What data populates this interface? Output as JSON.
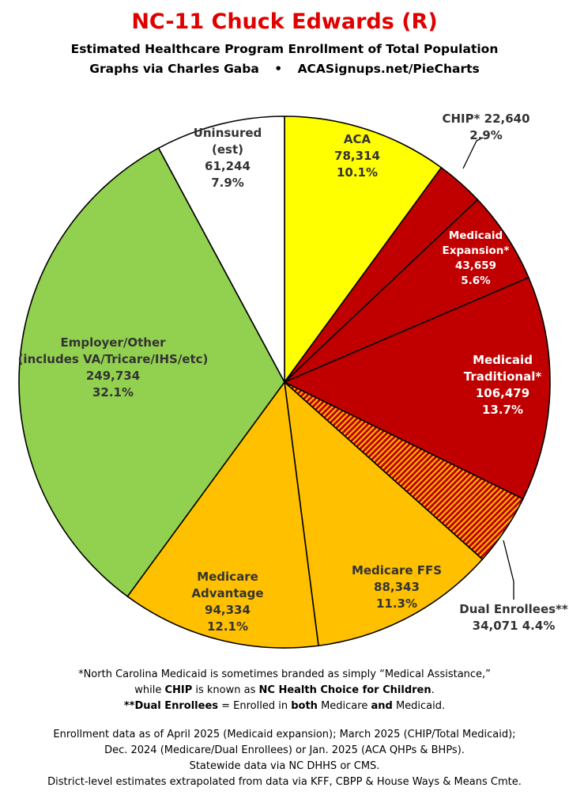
{
  "title": "NC-11 Chuck Edwards (R)",
  "subtitle": "Estimated Healthcare Program Enrollment of Total Population",
  "credit_left": "Graphs via Charles Gaba",
  "credit_bullet": "•",
  "credit_right": "ACASignups.net/PieCharts",
  "colors": {
    "title": "#e00000",
    "aca": "#ffff00",
    "medicaid": "#c00000",
    "medicare": "#ffc000",
    "employer": "#92d050",
    "uninsured": "#ffffff",
    "dual_stripe": "#ffc000"
  },
  "chart_data": {
    "type": "pie",
    "start": "12 o'clock",
    "direction": "clockwise",
    "slices": [
      {
        "key": "aca",
        "label_lines": [
          "ACA"
        ],
        "value": 78314,
        "value_text": "78,314",
        "percent": 10.1,
        "percent_text": "10.1%",
        "color": "#ffff00"
      },
      {
        "key": "chip",
        "label_lines": [
          "CHIP* 22,640"
        ],
        "value": 22640,
        "value_text": "",
        "percent": 2.9,
        "percent_text": "2.9%",
        "color": "#c00000"
      },
      {
        "key": "medicaid-expansion",
        "label_lines": [
          "Medicaid",
          "Expansion*"
        ],
        "value": 43659,
        "value_text": "43,659",
        "percent": 5.6,
        "percent_text": "5.6%",
        "color": "#c00000"
      },
      {
        "key": "medicaid-traditional",
        "label_lines": [
          "Medicaid",
          "Traditional*"
        ],
        "value": 106479,
        "value_text": "106,479",
        "percent": 13.7,
        "percent_text": "13.7%",
        "color": "#c00000"
      },
      {
        "key": "dual-enrollees",
        "label_lines": [
          "Dual Enrollees**"
        ],
        "value": 34071,
        "value_text": "34,071 4.4%",
        "percent": 4.4,
        "percent_text": "",
        "color": "#c00000",
        "pattern": "stripes"
      },
      {
        "key": "medicare-ffs",
        "label_lines": [
          "Medicare FFS"
        ],
        "value": 88343,
        "value_text": "88,343",
        "percent": 11.3,
        "percent_text": "11.3%",
        "color": "#ffc000"
      },
      {
        "key": "medicare-advantage",
        "label_lines": [
          "Medicare",
          "Advantage"
        ],
        "value": 94334,
        "value_text": "94,334",
        "percent": 12.1,
        "percent_text": "12.1%",
        "color": "#ffc000"
      },
      {
        "key": "employer-other",
        "label_lines": [
          "Employer/Other",
          "(includes VA/Tricare/IHS/etc)"
        ],
        "value": 249734,
        "value_text": "249,734",
        "percent": 32.1,
        "percent_text": "32.1%",
        "color": "#92d050"
      },
      {
        "key": "uninsured",
        "label_lines": [
          "Uninsured",
          "(est)"
        ],
        "value": 61244,
        "value_text": "61,244",
        "percent": 7.9,
        "percent_text": "7.9%",
        "color": "#ffffff"
      }
    ]
  },
  "notes": [
    [
      {
        "t": "*North Carolina Medicaid is sometimes branded as simply “Medical Assistance,”",
        "b": false
      }
    ],
    [
      {
        "t": "while ",
        "b": false
      },
      {
        "t": "CHIP",
        "b": true
      },
      {
        "t": " is known as ",
        "b": false
      },
      {
        "t": "NC Health Choice for Children",
        "b": true
      },
      {
        "t": ".",
        "b": false
      }
    ],
    [
      {
        "t": "**Dual Enrollees",
        "b": true
      },
      {
        "t": " = Enrolled in ",
        "b": false
      },
      {
        "t": "both",
        "b": true
      },
      {
        "t": " Medicare ",
        "b": false
      },
      {
        "t": "and",
        "b": true
      },
      {
        "t": " Medicaid.",
        "b": false
      }
    ]
  ],
  "sources": [
    "Enrollment data as of April 2025 (Medicaid expansion); March 2025 (CHIP/Total Medicaid);",
    "Dec. 2024 (Medicare/Dual Enrollees) or Jan. 2025 (ACA QHPs & BHPs).",
    "Statewide data via NC DHHS or CMS.",
    "District-level estimates extrapolated from data via KFF, CBPP & House Ways & Means Cmte."
  ]
}
